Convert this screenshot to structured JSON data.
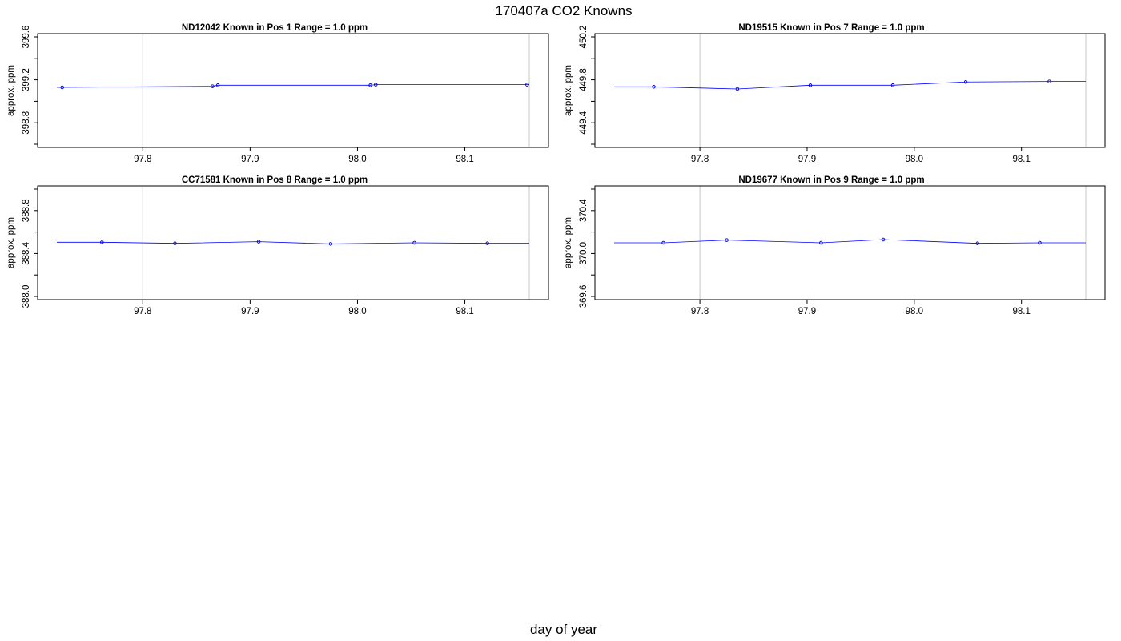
{
  "figure": {
    "title": "170407a   CO2 Knowns",
    "xlabel": "day of year"
  },
  "chart_data": [
    {
      "type": "line",
      "title": "ND12042    Known in Pos 1          Range = 1.0 ppm",
      "ylabel": "approx. ppm",
      "xlim": [
        97.72,
        98.16
      ],
      "ylim": [
        398.6,
        399.6
      ],
      "xticks": [
        "97.8",
        "97.9",
        "98.0",
        "98.1"
      ],
      "yticks": [
        "398.8",
        "399.2",
        "399.6"
      ],
      "vlines": [
        97.8,
        98.16
      ],
      "start_x": 97.72,
      "end_x": 98.16,
      "series": [
        {
          "x": [
            97.725,
            97.865,
            97.87,
            98.012,
            98.017,
            98.158
          ],
          "y": [
            399.13,
            399.14,
            399.15,
            399.15,
            399.155,
            399.155
          ]
        }
      ]
    },
    {
      "type": "line",
      "title": "ND19515    Known in Pos 7          Range = 1.0 ppm",
      "ylabel": "approx. ppm",
      "xlim": [
        97.72,
        98.16
      ],
      "ylim": [
        449.2,
        450.2
      ],
      "xticks": [
        "97.8",
        "97.9",
        "98.0",
        "98.1"
      ],
      "yticks": [
        "449.4",
        "449.8",
        "450.2"
      ],
      "vlines": [
        97.8,
        98.16
      ],
      "start_x": 97.72,
      "end_x": 98.16,
      "series": [
        {
          "x": [
            97.757,
            97.835,
            97.903,
            97.98,
            98.048,
            98.126
          ],
          "y": [
            449.735,
            449.715,
            449.75,
            449.75,
            449.78,
            449.785
          ]
        }
      ]
    },
    {
      "type": "line",
      "title": "CC71581    Known in Pos 8          Range = 1.0 ppm",
      "ylabel": "approx. ppm",
      "xlim": [
        97.72,
        98.16
      ],
      "ylim": [
        388.0,
        389.0
      ],
      "xticks": [
        "97.8",
        "97.9",
        "98.0",
        "98.1"
      ],
      "yticks": [
        "388.0",
        "388.4",
        "388.8"
      ],
      "vlines": [
        97.8,
        98.16
      ],
      "start_x": 97.72,
      "end_x": 98.16,
      "series": [
        {
          "x": [
            97.762,
            97.83,
            97.908,
            97.975,
            98.053,
            98.121
          ],
          "y": [
            388.505,
            388.495,
            388.51,
            388.49,
            388.5,
            388.495
          ]
        }
      ]
    },
    {
      "type": "line",
      "title": "ND19677    Known in Pos 9          Range = 1.0 ppm",
      "ylabel": "approx. ppm",
      "xlim": [
        97.72,
        98.16
      ],
      "ylim": [
        369.6,
        370.6
      ],
      "xticks": [
        "97.8",
        "97.9",
        "98.0",
        "98.1"
      ],
      "yticks": [
        "369.6",
        "370.0",
        "370.4"
      ],
      "vlines": [
        97.8,
        98.16
      ],
      "start_x": 97.72,
      "end_x": 98.16,
      "series": [
        {
          "x": [
            97.766,
            97.825,
            97.913,
            97.971,
            98.059,
            98.117
          ],
          "y": [
            370.1,
            370.125,
            370.1,
            370.13,
            370.095,
            370.1
          ]
        }
      ]
    }
  ]
}
